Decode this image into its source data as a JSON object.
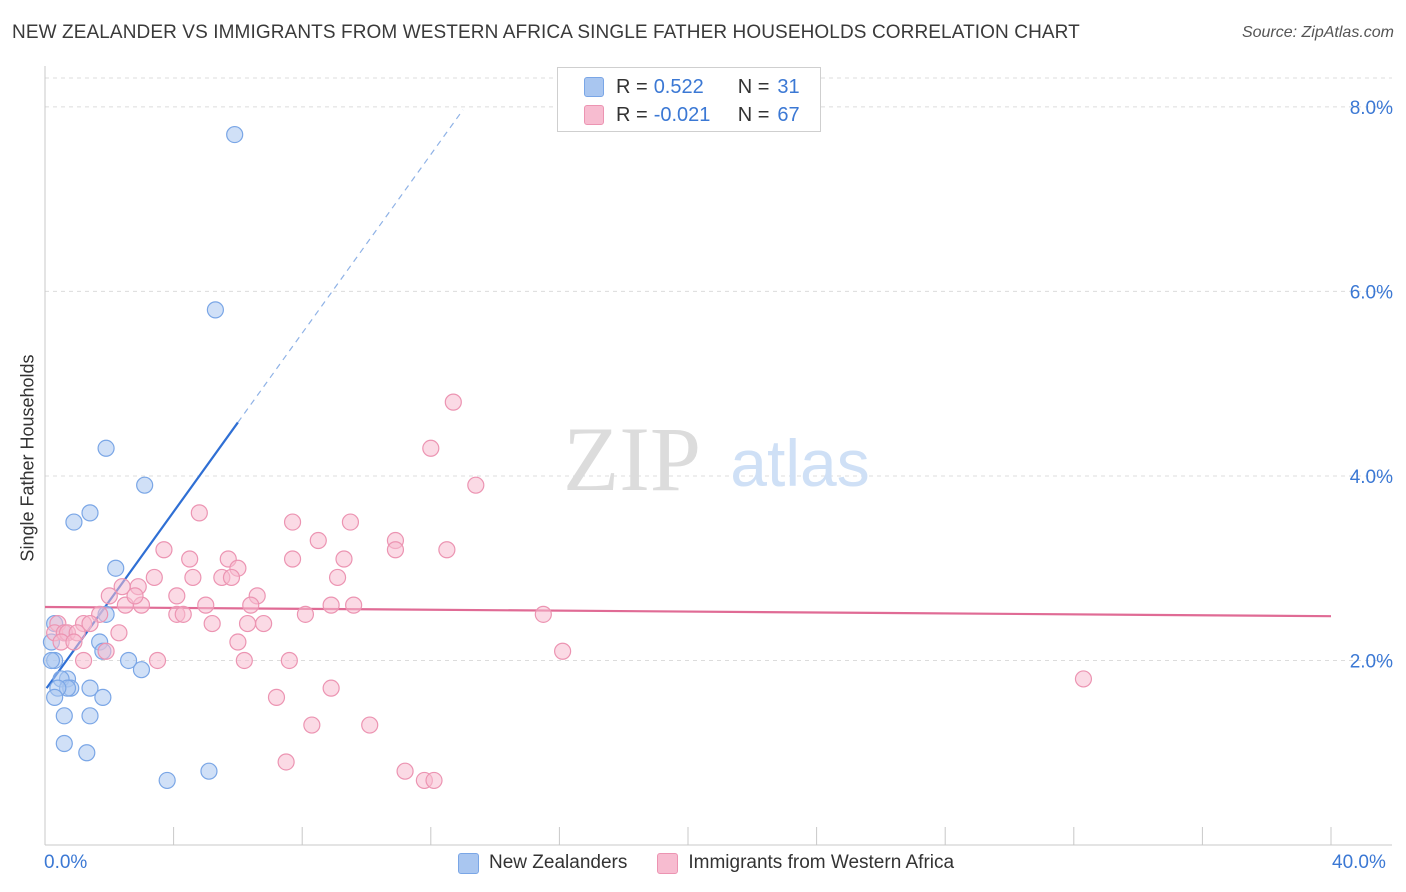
{
  "title": "NEW ZEALANDER VS IMMIGRANTS FROM WESTERN AFRICA SINGLE FATHER HOUSEHOLDS CORRELATION CHART",
  "source": "Source: ZipAtlas.com",
  "watermark": {
    "part1": "ZIP",
    "part2": "atlas"
  },
  "legend": {
    "rows": [
      {
        "r_label": "R =",
        "r_value": "0.522",
        "n_label": "N =",
        "n_value": "31",
        "color": "#a9c6f0",
        "border": "#7aa6e6"
      },
      {
        "r_label": "R =",
        "r_value": "-0.021",
        "n_label": "N =",
        "n_value": "67",
        "color": "#f7bcd0",
        "border": "#ec94b2"
      }
    ]
  },
  "bottom_legend": [
    {
      "label": "New Zealanders",
      "color": "#a9c6f0",
      "border": "#7aa6e6"
    },
    {
      "label": "Immigrants from Western Africa",
      "color": "#f7bcd0",
      "border": "#ec94b2"
    }
  ],
  "x_tick_labels": {
    "min": "0.0%",
    "max": "40.0%"
  },
  "chart_data": {
    "type": "scatter",
    "ylabel": "Single Father Households",
    "xlabel": "",
    "xlim": [
      0,
      40
    ],
    "ylim": [
      0,
      8.4
    ],
    "y_ticks": [
      {
        "value": 2,
        "label": "2.0%"
      },
      {
        "value": 4,
        "label": "4.0%"
      },
      {
        "value": 6,
        "label": "6.0%"
      },
      {
        "value": 8,
        "label": "8.0%"
      }
    ],
    "grid": true,
    "series": [
      {
        "name": "New Zealanders",
        "color": "#7aa6e6",
        "fill": "#a9c6f0",
        "trend": {
          "x0": 0.05,
          "y0": 1.7,
          "x1": 6.0,
          "y1": 4.58,
          "dash_to_x": 13.0,
          "color": "#2f6fd4"
        },
        "points": [
          [
            5.9,
            7.7
          ],
          [
            5.3,
            5.8
          ],
          [
            1.9,
            4.3
          ],
          [
            3.1,
            3.9
          ],
          [
            1.4,
            3.6
          ],
          [
            0.9,
            3.5
          ],
          [
            2.2,
            3.0
          ],
          [
            1.9,
            2.5
          ],
          [
            0.3,
            2.4
          ],
          [
            0.6,
            2.3
          ],
          [
            1.7,
            2.2
          ],
          [
            0.2,
            2.2
          ],
          [
            1.8,
            2.1
          ],
          [
            0.3,
            2.0
          ],
          [
            0.2,
            2.0
          ],
          [
            2.6,
            2.0
          ],
          [
            3.0,
            1.9
          ],
          [
            0.7,
            1.8
          ],
          [
            0.5,
            1.8
          ],
          [
            0.8,
            1.7
          ],
          [
            0.7,
            1.7
          ],
          [
            0.4,
            1.7
          ],
          [
            1.4,
            1.7
          ],
          [
            0.3,
            1.6
          ],
          [
            1.8,
            1.6
          ],
          [
            1.4,
            1.4
          ],
          [
            0.6,
            1.4
          ],
          [
            0.6,
            1.1
          ],
          [
            1.3,
            1.0
          ],
          [
            5.1,
            0.8
          ],
          [
            3.8,
            0.7
          ]
        ]
      },
      {
        "name": "Immigrants from Western Africa",
        "color": "#ec94b2",
        "fill": "#f7bcd0",
        "trend": {
          "x0": 0.0,
          "y0": 2.58,
          "x1": 40.0,
          "y1": 2.48,
          "color": "#e06b95"
        },
        "points": [
          [
            12.7,
            4.8
          ],
          [
            12.0,
            4.3
          ],
          [
            13.4,
            3.9
          ],
          [
            4.8,
            3.6
          ],
          [
            7.7,
            3.5
          ],
          [
            9.5,
            3.5
          ],
          [
            8.5,
            3.3
          ],
          [
            10.9,
            3.3
          ],
          [
            10.9,
            3.2
          ],
          [
            12.5,
            3.2
          ],
          [
            3.7,
            3.2
          ],
          [
            4.5,
            3.1
          ],
          [
            5.7,
            3.1
          ],
          [
            6.0,
            3.0
          ],
          [
            7.7,
            3.1
          ],
          [
            9.3,
            3.1
          ],
          [
            5.5,
            2.9
          ],
          [
            5.8,
            2.9
          ],
          [
            3.4,
            2.9
          ],
          [
            9.1,
            2.9
          ],
          [
            2.4,
            2.8
          ],
          [
            2.9,
            2.8
          ],
          [
            2.0,
            2.7
          ],
          [
            4.1,
            2.7
          ],
          [
            6.6,
            2.7
          ],
          [
            2.5,
            2.6
          ],
          [
            3.0,
            2.6
          ],
          [
            5.0,
            2.6
          ],
          [
            6.4,
            2.6
          ],
          [
            8.9,
            2.6
          ],
          [
            9.6,
            2.6
          ],
          [
            1.7,
            2.5
          ],
          [
            4.1,
            2.5
          ],
          [
            4.3,
            2.5
          ],
          [
            8.1,
            2.5
          ],
          [
            15.5,
            2.5
          ],
          [
            1.2,
            2.4
          ],
          [
            1.4,
            2.4
          ],
          [
            5.2,
            2.4
          ],
          [
            6.3,
            2.4
          ],
          [
            6.8,
            2.4
          ],
          [
            0.4,
            2.4
          ],
          [
            0.3,
            2.3
          ],
          [
            0.6,
            2.3
          ],
          [
            0.7,
            2.3
          ],
          [
            1.0,
            2.3
          ],
          [
            2.3,
            2.3
          ],
          [
            0.5,
            2.2
          ],
          [
            0.9,
            2.2
          ],
          [
            6.0,
            2.2
          ],
          [
            1.9,
            2.1
          ],
          [
            16.1,
            2.1
          ],
          [
            3.5,
            2.0
          ],
          [
            1.2,
            2.0
          ],
          [
            6.2,
            2.0
          ],
          [
            7.6,
            2.0
          ],
          [
            32.3,
            1.8
          ],
          [
            8.9,
            1.7
          ],
          [
            7.2,
            1.6
          ],
          [
            10.1,
            1.3
          ],
          [
            8.3,
            1.3
          ],
          [
            7.5,
            0.9
          ],
          [
            11.2,
            0.8
          ],
          [
            11.8,
            0.7
          ],
          [
            12.1,
            0.7
          ],
          [
            4.6,
            2.9
          ],
          [
            2.8,
            2.7
          ]
        ]
      }
    ]
  }
}
